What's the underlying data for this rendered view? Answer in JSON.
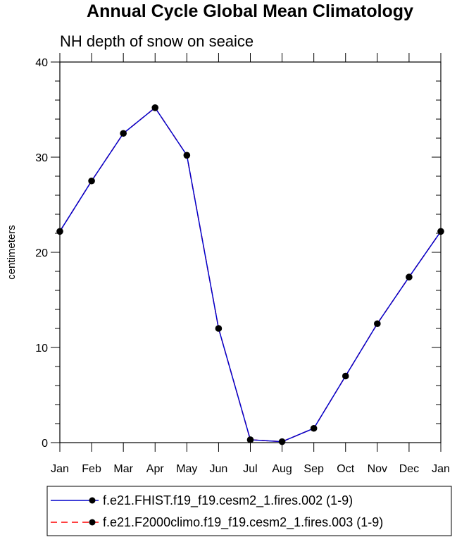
{
  "chart_data": {
    "type": "line",
    "title": "Annual Cycle Global Mean Climatology",
    "subtitle": "NH depth of snow on seaice",
    "ylabel": "centimeters",
    "xlabel": "",
    "categories": [
      "Jan",
      "Feb",
      "Mar",
      "Apr",
      "May",
      "Jun",
      "Jul",
      "Aug",
      "Sep",
      "Oct",
      "Nov",
      "Dec",
      "Jan"
    ],
    "ylim": [
      0,
      40
    ],
    "yticks": [
      0,
      10,
      20,
      30,
      40
    ],
    "grid": false,
    "legend_position": "bottom",
    "series": [
      {
        "name": "f.e21.FHIST.f19_f19.cesm2_1.fires.002 (1-9)",
        "color": "#0000cc",
        "style": "solid",
        "marker": "filled-circle",
        "values": [
          22.2,
          27.5,
          32.5,
          35.2,
          30.2,
          12.0,
          0.3,
          0.1,
          1.5,
          7.0,
          12.5,
          17.4,
          22.2
        ]
      },
      {
        "name": "f.e21.F2000climo.f19_f19.cesm2_1.fires.003 (1-9)",
        "color": "#ff0000",
        "style": "dashed",
        "marker": "filled-circle",
        "values": [
          22.2,
          27.5,
          32.5,
          35.2,
          30.2,
          12.0,
          0.3,
          0.1,
          1.5,
          7.0,
          12.5,
          17.4,
          22.2
        ]
      }
    ]
  }
}
